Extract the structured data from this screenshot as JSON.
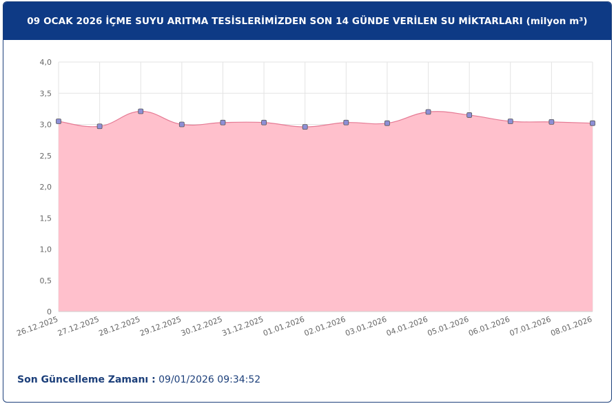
{
  "header": {
    "title": "09 OCAK 2026 İÇME SUYU ARITMA TESİSLERİMİZDEN SON 14 GÜNDE VERİLEN SU MİKTARLARI (milyon m³)"
  },
  "footer": {
    "label": "Son Güncelleme Zamanı :",
    "value": "09/01/2026 09:34:52"
  },
  "colors": {
    "header_bg": "#0e3a85",
    "area_fill": "#ffc0cc",
    "line": "#e57a94",
    "marker_fill": "#8e8fd6",
    "grid": "#e3e3e3"
  },
  "chart_data": {
    "type": "area",
    "title": "",
    "xlabel": "",
    "ylabel": "",
    "x": [
      "26.12.2025",
      "27.12.2025",
      "28.12.2025",
      "29.12.2025",
      "30.12.2025",
      "31.12.2025",
      "01.01.2026",
      "02.01.2026",
      "03.01.2026",
      "04.01.2026",
      "05.01.2026",
      "06.01.2026",
      "07.01.2026",
      "08.01.2026"
    ],
    "values": [
      3.05,
      2.97,
      3.21,
      3.0,
      3.03,
      3.03,
      2.96,
      3.03,
      3.02,
      3.2,
      3.15,
      3.05,
      3.04,
      3.02
    ],
    "ylim": [
      0,
      4
    ],
    "yticks": [
      "0",
      "0,5",
      "1,0",
      "1,5",
      "2,0",
      "2,5",
      "3,0",
      "3,5",
      "4,0"
    ],
    "grid": true,
    "legend": "none"
  }
}
